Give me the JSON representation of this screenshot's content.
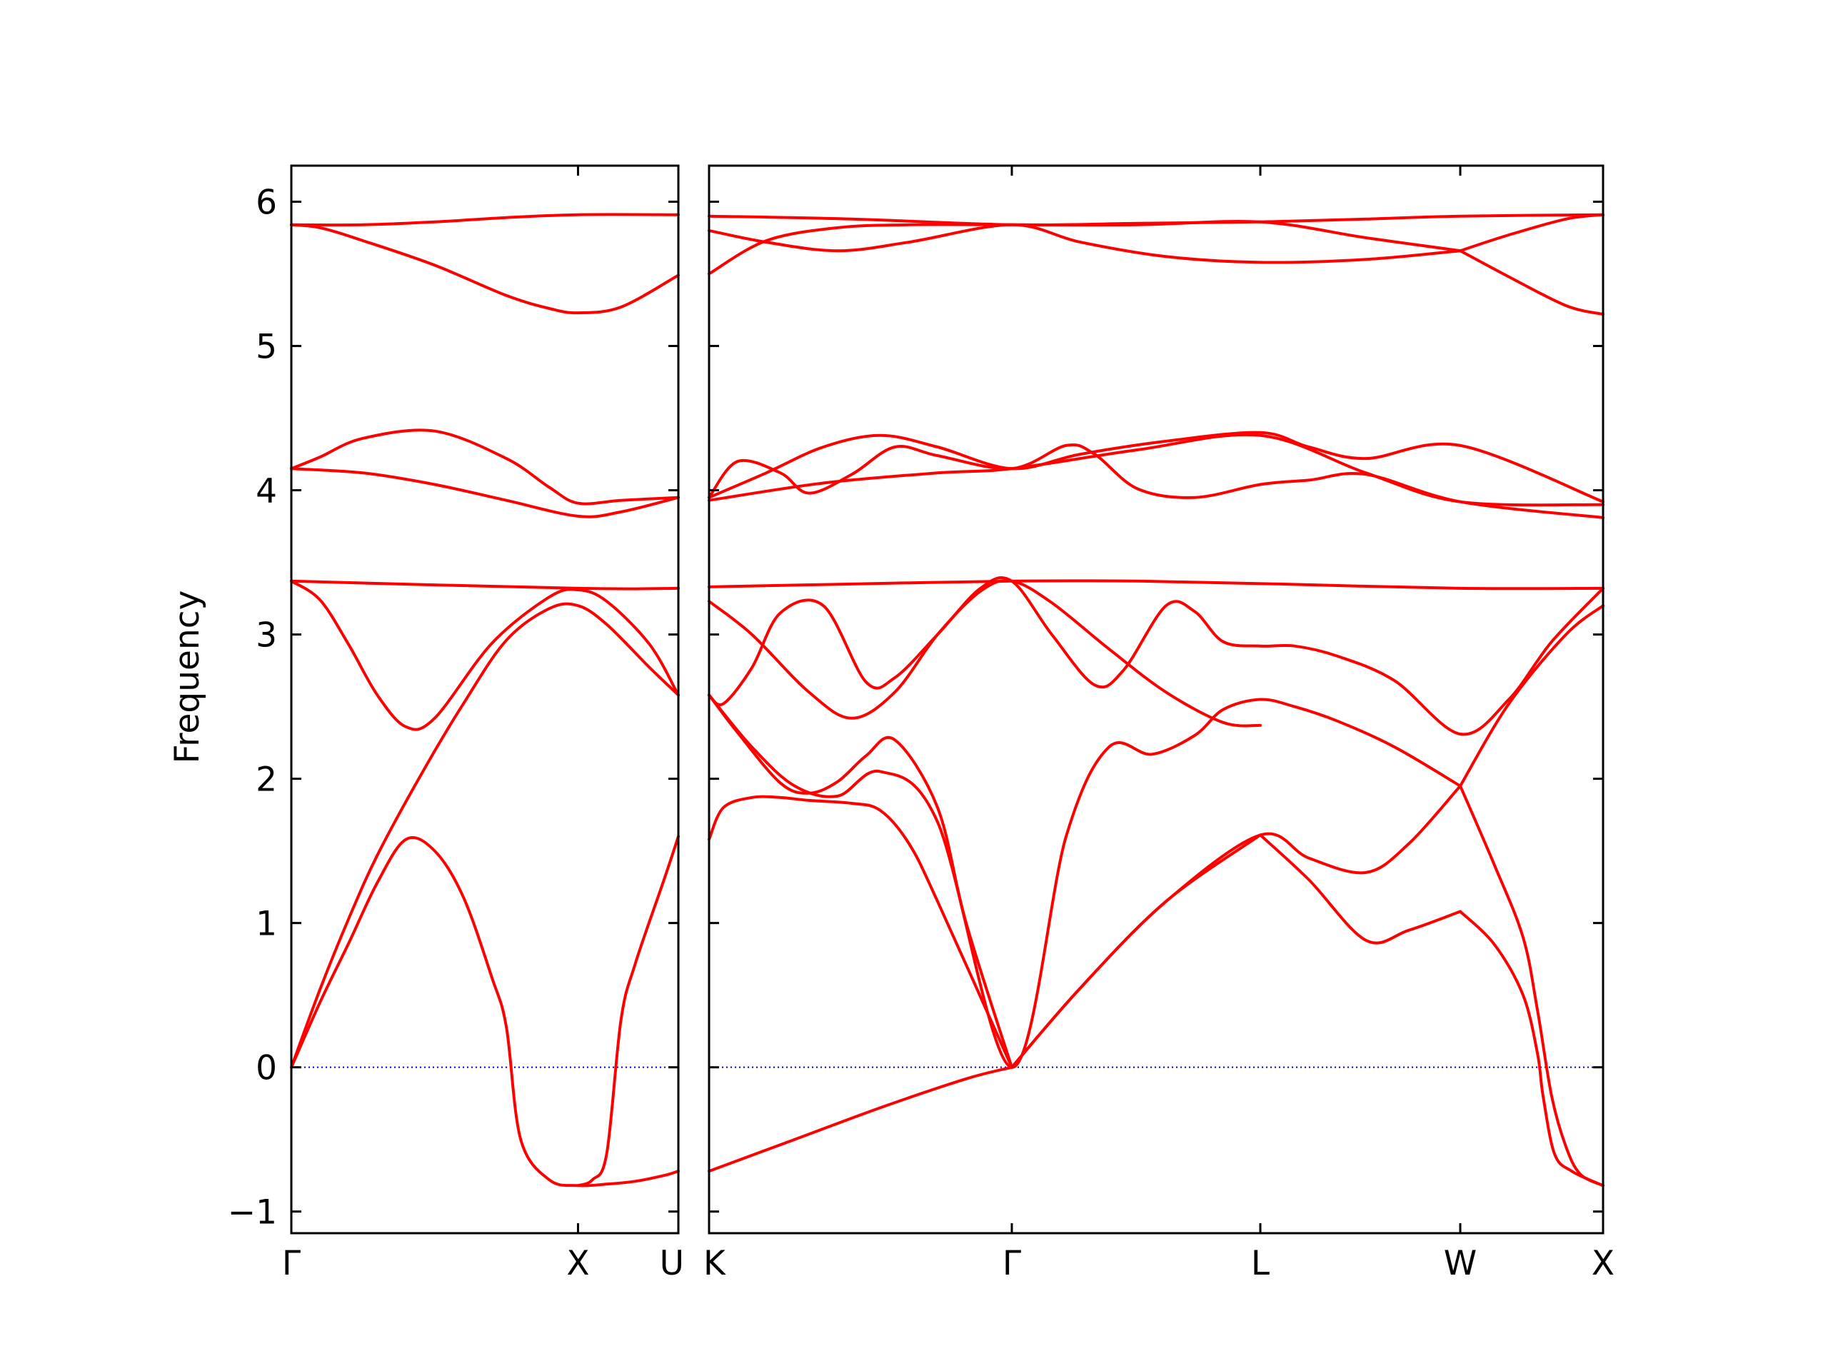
{
  "chart_data": {
    "type": "line",
    "title": "",
    "ylabel": "Frequency",
    "xlabel": "",
    "ylim": [
      -1.15,
      6.25
    ],
    "y_ticks": [
      -1,
      0,
      1,
      2,
      3,
      4,
      5,
      6
    ],
    "y_tick_labels": [
      "−1",
      "0",
      "1",
      "2",
      "3",
      "4",
      "5",
      "6"
    ],
    "grid": false,
    "legend": "none",
    "line_color": "#ff0000",
    "zero_line_color": "#0000cc",
    "panels": [
      {
        "x_ticks": [
          0.0,
          1.0,
          1.35
        ],
        "x_tick_labels": [
          "Γ",
          "X",
          "U"
        ],
        "xlim": [
          0.0,
          1.35
        ],
        "series": [
          {
            "x": [
              0.0,
              0.25,
              0.5,
              0.75,
              1.0,
              1.35
            ],
            "y": [
              5.84,
              5.84,
              5.86,
              5.89,
              5.91,
              5.91
            ]
          },
          {
            "x": [
              0.0,
              0.1,
              0.25,
              0.5,
              0.75,
              0.9,
              1.0,
              1.15,
              1.35
            ],
            "y": [
              5.84,
              5.82,
              5.73,
              5.56,
              5.35,
              5.26,
              5.23,
              5.27,
              5.49
            ]
          },
          {
            "x": [
              0.0,
              0.1,
              0.25,
              0.5,
              0.75,
              0.9,
              1.0,
              1.15,
              1.35
            ],
            "y": [
              4.15,
              4.23,
              4.36,
              4.41,
              4.22,
              4.02,
              3.91,
              3.93,
              3.95
            ]
          },
          {
            "x": [
              0.0,
              0.25,
              0.5,
              0.75,
              1.0,
              1.15,
              1.35
            ],
            "y": [
              4.15,
              4.12,
              4.04,
              3.93,
              3.82,
              3.85,
              3.95
            ]
          },
          {
            "x": [
              0.0,
              1.0,
              1.35
            ],
            "y": [
              3.37,
              3.32,
              3.32
            ]
          },
          {
            "x": [
              0.0,
              0.1,
              0.2,
              0.3,
              0.4,
              0.5,
              0.7,
              0.9,
              1.0,
              1.1,
              1.25,
              1.35
            ],
            "y": [
              3.37,
              3.24,
              2.93,
              2.58,
              2.36,
              2.42,
              2.94,
              3.26,
              3.31,
              3.23,
              2.93,
              2.58
            ]
          },
          {
            "x": [
              0.0,
              0.1,
              0.2,
              0.3,
              0.45,
              0.6,
              0.75,
              0.9,
              1.0,
              1.1,
              1.25,
              1.35
            ],
            "y": [
              0.0,
              0.54,
              1.03,
              1.47,
              2.02,
              2.52,
              2.96,
              3.18,
              3.2,
              3.07,
              2.77,
              2.58
            ]
          },
          {
            "x": [
              0.0,
              0.1,
              0.2,
              0.3,
              0.4,
              0.5,
              0.6,
              0.7,
              0.75,
              0.8,
              0.9,
              1.0,
              1.1,
              1.2,
              1.3,
              1.35
            ],
            "y": [
              0.0,
              0.45,
              0.86,
              1.28,
              1.58,
              1.5,
              1.18,
              0.62,
              0.28,
              -0.5,
              -0.78,
              -0.82,
              -0.81,
              -0.79,
              -0.75,
              -0.72
            ]
          },
          {
            "x": [
              1.0,
              1.05,
              1.1,
              1.15,
              1.2,
              1.3,
              1.35
            ],
            "y": [
              -0.82,
              -0.78,
              -0.6,
              0.33,
              0.72,
              1.3,
              1.6
            ]
          }
        ]
      },
      {
        "x_ticks": [
          0.0,
          1.06,
          1.93,
          2.63,
          3.13
        ],
        "x_tick_labels": [
          "K",
          "Γ",
          "L",
          "W",
          "X"
        ],
        "xlim": [
          0.0,
          3.13
        ],
        "series": [
          {
            "x": [
              0.0,
              0.5,
              1.06,
              1.5,
              1.93,
              2.3,
              2.63,
              3.13
            ],
            "y": [
              5.9,
              5.88,
              5.84,
              5.85,
              5.86,
              5.88,
              5.9,
              5.91
            ]
          },
          {
            "x": [
              0.0,
              0.2,
              0.45,
              0.7,
              1.06,
              1.3,
              1.6,
              1.93,
              2.3,
              2.63
            ],
            "y": [
              5.8,
              5.72,
              5.66,
              5.72,
              5.84,
              5.72,
              5.62,
              5.58,
              5.6,
              5.66
            ]
          },
          {
            "x": [
              0.0,
              0.2,
              0.45,
              0.7,
              1.06,
              1.5,
              1.93,
              2.3,
              2.63
            ],
            "y": [
              5.5,
              5.73,
              5.82,
              5.84,
              5.84,
              5.84,
              5.86,
              5.75,
              5.66
            ]
          },
          {
            "x": [
              2.63,
              2.8,
              3.0,
              3.13
            ],
            "y": [
              5.66,
              5.77,
              5.88,
              5.91
            ]
          },
          {
            "x": [
              2.63,
              2.8,
              3.0,
              3.13
            ],
            "y": [
              5.66,
              5.48,
              5.28,
              5.22
            ]
          },
          {
            "x": [
              0.0,
              0.1,
              0.25,
              0.35,
              0.5,
              0.65,
              0.8,
              1.06,
              1.25,
              1.35,
              1.5,
              1.7,
              1.93,
              2.1,
              2.3,
              2.63,
              3.13
            ],
            "y": [
              3.95,
              4.2,
              4.12,
              3.98,
              4.11,
              4.3,
              4.24,
              4.15,
              4.31,
              4.25,
              4.01,
              3.95,
              4.04,
              4.07,
              4.11,
              3.92,
              3.81
            ]
          },
          {
            "x": [
              0.0,
              0.2,
              0.4,
              0.6,
              0.8,
              1.06,
              1.3,
              1.6,
              1.93,
              2.1,
              2.3,
              2.63,
              3.13
            ],
            "y": [
              3.95,
              4.12,
              4.3,
              4.38,
              4.3,
              4.15,
              4.25,
              4.34,
              4.4,
              4.3,
              4.22,
              4.31,
              3.92
            ]
          },
          {
            "x": [
              0.0,
              0.4,
              0.8,
              1.06,
              1.5,
              1.93,
              2.3,
              2.63,
              3.13
            ],
            "y": [
              3.93,
              4.05,
              4.12,
              4.15,
              4.28,
              4.38,
              4.12,
              3.92,
              3.9
            ]
          },
          {
            "x": [
              0.0,
              0.5,
              1.06,
              1.5,
              2.0,
              2.63,
              3.13
            ],
            "y": [
              3.33,
              3.35,
              3.37,
              3.37,
              3.35,
              3.32,
              3.32
            ]
          },
          {
            "x": [
              0.0,
              0.15,
              0.35,
              0.5,
              0.65,
              0.8,
              0.95,
              1.06,
              1.2,
              1.4,
              1.6,
              1.8,
              1.93
            ],
            "y": [
              3.23,
              3.0,
              2.6,
              2.42,
              2.6,
              3.0,
              3.3,
              3.37,
              3.22,
              2.9,
              2.6,
              2.39,
              2.37
            ]
          },
          {
            "x": [
              0.0,
              0.05,
              0.15,
              0.25,
              0.4,
              0.55,
              0.65,
              0.8,
              0.95,
              1.06,
              1.2,
              1.35,
              1.45,
              1.6,
              1.7,
              1.8,
              1.93,
              2.05,
              2.2,
              2.4,
              2.63,
              2.8,
              2.95,
              3.13
            ],
            "y": [
              2.58,
              2.52,
              2.77,
              3.15,
              3.2,
              2.67,
              2.7,
              3.0,
              3.32,
              3.37,
              3.0,
              2.65,
              2.75,
              3.2,
              3.16,
              2.95,
              2.92,
              2.92,
              2.85,
              2.68,
              2.31,
              2.55,
              2.95,
              3.32
            ]
          },
          {
            "x": [
              0.0,
              0.15,
              0.3,
              0.45,
              0.6,
              0.8,
              1.06,
              1.25,
              1.4,
              1.55,
              1.7,
              1.8,
              1.93,
              2.05,
              2.2,
              2.4,
              2.63
            ],
            "y": [
              2.58,
              2.22,
              1.95,
              1.88,
              2.05,
              1.7,
              0.0,
              1.6,
              2.22,
              2.17,
              2.3,
              2.48,
              2.55,
              2.5,
              2.4,
              2.22,
              1.95
            ]
          },
          {
            "x": [
              0.0,
              0.1,
              0.25,
              0.35,
              0.45,
              0.55,
              0.65,
              0.8,
              0.9,
              1.06
            ],
            "y": [
              2.58,
              2.32,
              1.97,
              1.9,
              1.98,
              2.16,
              2.27,
              1.8,
              1.0,
              0.0
            ]
          },
          {
            "x": [
              0.0,
              0.05,
              0.15,
              0.25,
              0.35,
              0.5,
              0.6,
              0.7,
              0.8,
              1.06
            ],
            "y": [
              1.58,
              1.8,
              1.87,
              1.87,
              1.85,
              1.83,
              1.78,
              1.55,
              1.15,
              0.0
            ]
          },
          {
            "x": [
              1.06,
              1.3,
              1.6,
              1.93,
              2.1,
              2.3,
              2.45,
              2.63
            ],
            "y": [
              0.0,
              0.55,
              1.15,
              1.61,
              1.45,
              1.35,
              1.55,
              1.95
            ]
          },
          {
            "x": [
              1.93,
              2.1,
              2.3,
              2.45,
              2.63
            ],
            "y": [
              1.61,
              1.3,
              0.88,
              0.95,
              1.08
            ]
          },
          {
            "x": [
              1.06,
              1.3,
              1.6,
              1.93
            ],
            "y": [
              0.0,
              0.55,
              1.15,
              1.61
            ]
          },
          {
            "x": [
              0.0,
              0.3,
              0.6,
              0.9,
              1.06
            ],
            "y": [
              -0.72,
              -0.5,
              -0.28,
              -0.08,
              0.0
            ]
          },
          {
            "x": [
              2.63,
              2.75,
              2.85,
              2.9,
              2.95,
              3.0,
              3.05,
              3.13
            ],
            "y": [
              1.95,
              1.4,
              0.9,
              0.4,
              -0.2,
              -0.55,
              -0.74,
              -0.82
            ]
          },
          {
            "x": [
              2.63,
              2.75,
              2.85,
              2.9,
              2.92,
              2.96,
              3.02,
              3.13
            ],
            "y": [
              1.08,
              0.85,
              0.5,
              0.1,
              -0.2,
              -0.6,
              -0.72,
              -0.82
            ]
          },
          {
            "x": [
              2.63,
              2.8,
              3.0,
              3.13
            ],
            "y": [
              1.95,
              2.52,
              3.0,
              3.2
            ]
          }
        ]
      }
    ]
  }
}
